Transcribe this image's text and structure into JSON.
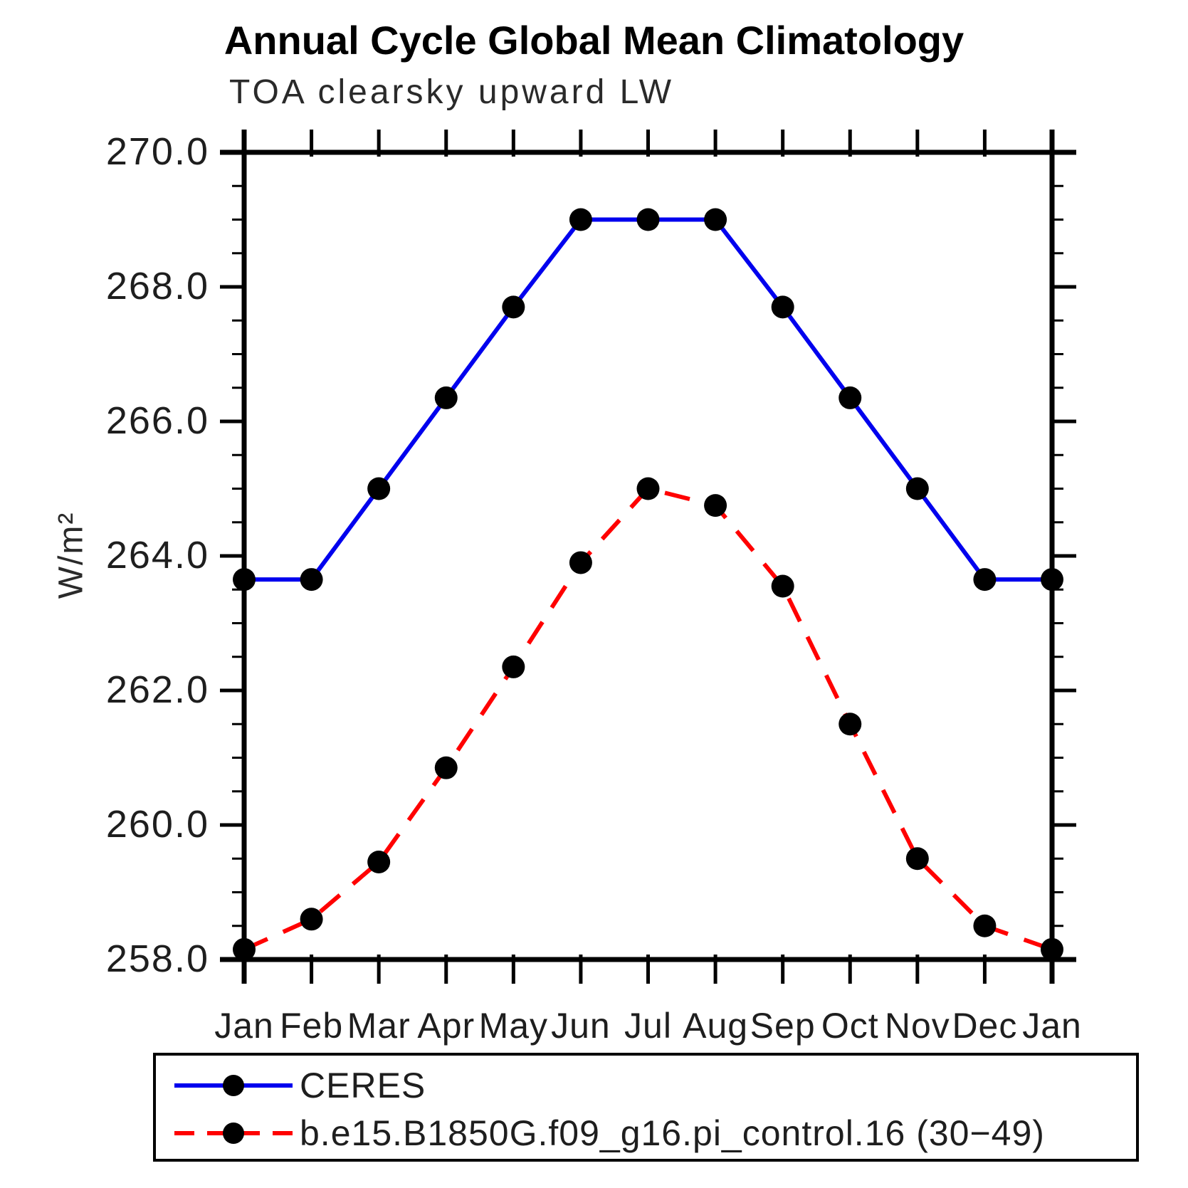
{
  "chart_data": {
    "type": "line",
    "title": "Annual Cycle Global Mean Climatology",
    "subtitle": "TOA clearsky upward LW",
    "ylabel": "W/m²",
    "xlabel": "",
    "categories": [
      "Jan",
      "Feb",
      "Mar",
      "Apr",
      "May",
      "Jun",
      "Jul",
      "Aug",
      "Sep",
      "Oct",
      "Nov",
      "Dec",
      "Jan"
    ],
    "ylim": [
      258.0,
      270.0
    ],
    "yticks": [
      258.0,
      260.0,
      262.0,
      264.0,
      266.0,
      268.0,
      270.0
    ],
    "ytick_step": 2.0,
    "minor_tick_step": 0.5,
    "grid": "off",
    "legend_position": "bottom-left-box",
    "series": [
      {
        "name": "CERES",
        "color": "#0000ee",
        "style": "solid",
        "marker": "filled-circle",
        "marker_color": "#000000",
        "values": [
          263.65,
          263.65,
          265.0,
          266.35,
          267.7,
          269.0,
          269.0,
          269.0,
          267.7,
          266.35,
          265.0,
          263.65,
          263.65
        ]
      },
      {
        "name": "b.e15.B1850G.f09_g16.pi_control.16 (30−49)",
        "color": "#ff0000",
        "style": "dashed",
        "marker": "filled-circle",
        "marker_color": "#000000",
        "values": [
          258.15,
          258.6,
          259.45,
          260.85,
          262.35,
          263.9,
          265.0,
          264.75,
          263.55,
          261.5,
          259.5,
          258.5,
          258.15
        ]
      }
    ],
    "axis_color": "#000000",
    "tick_label_color": "#1e1e1e"
  }
}
